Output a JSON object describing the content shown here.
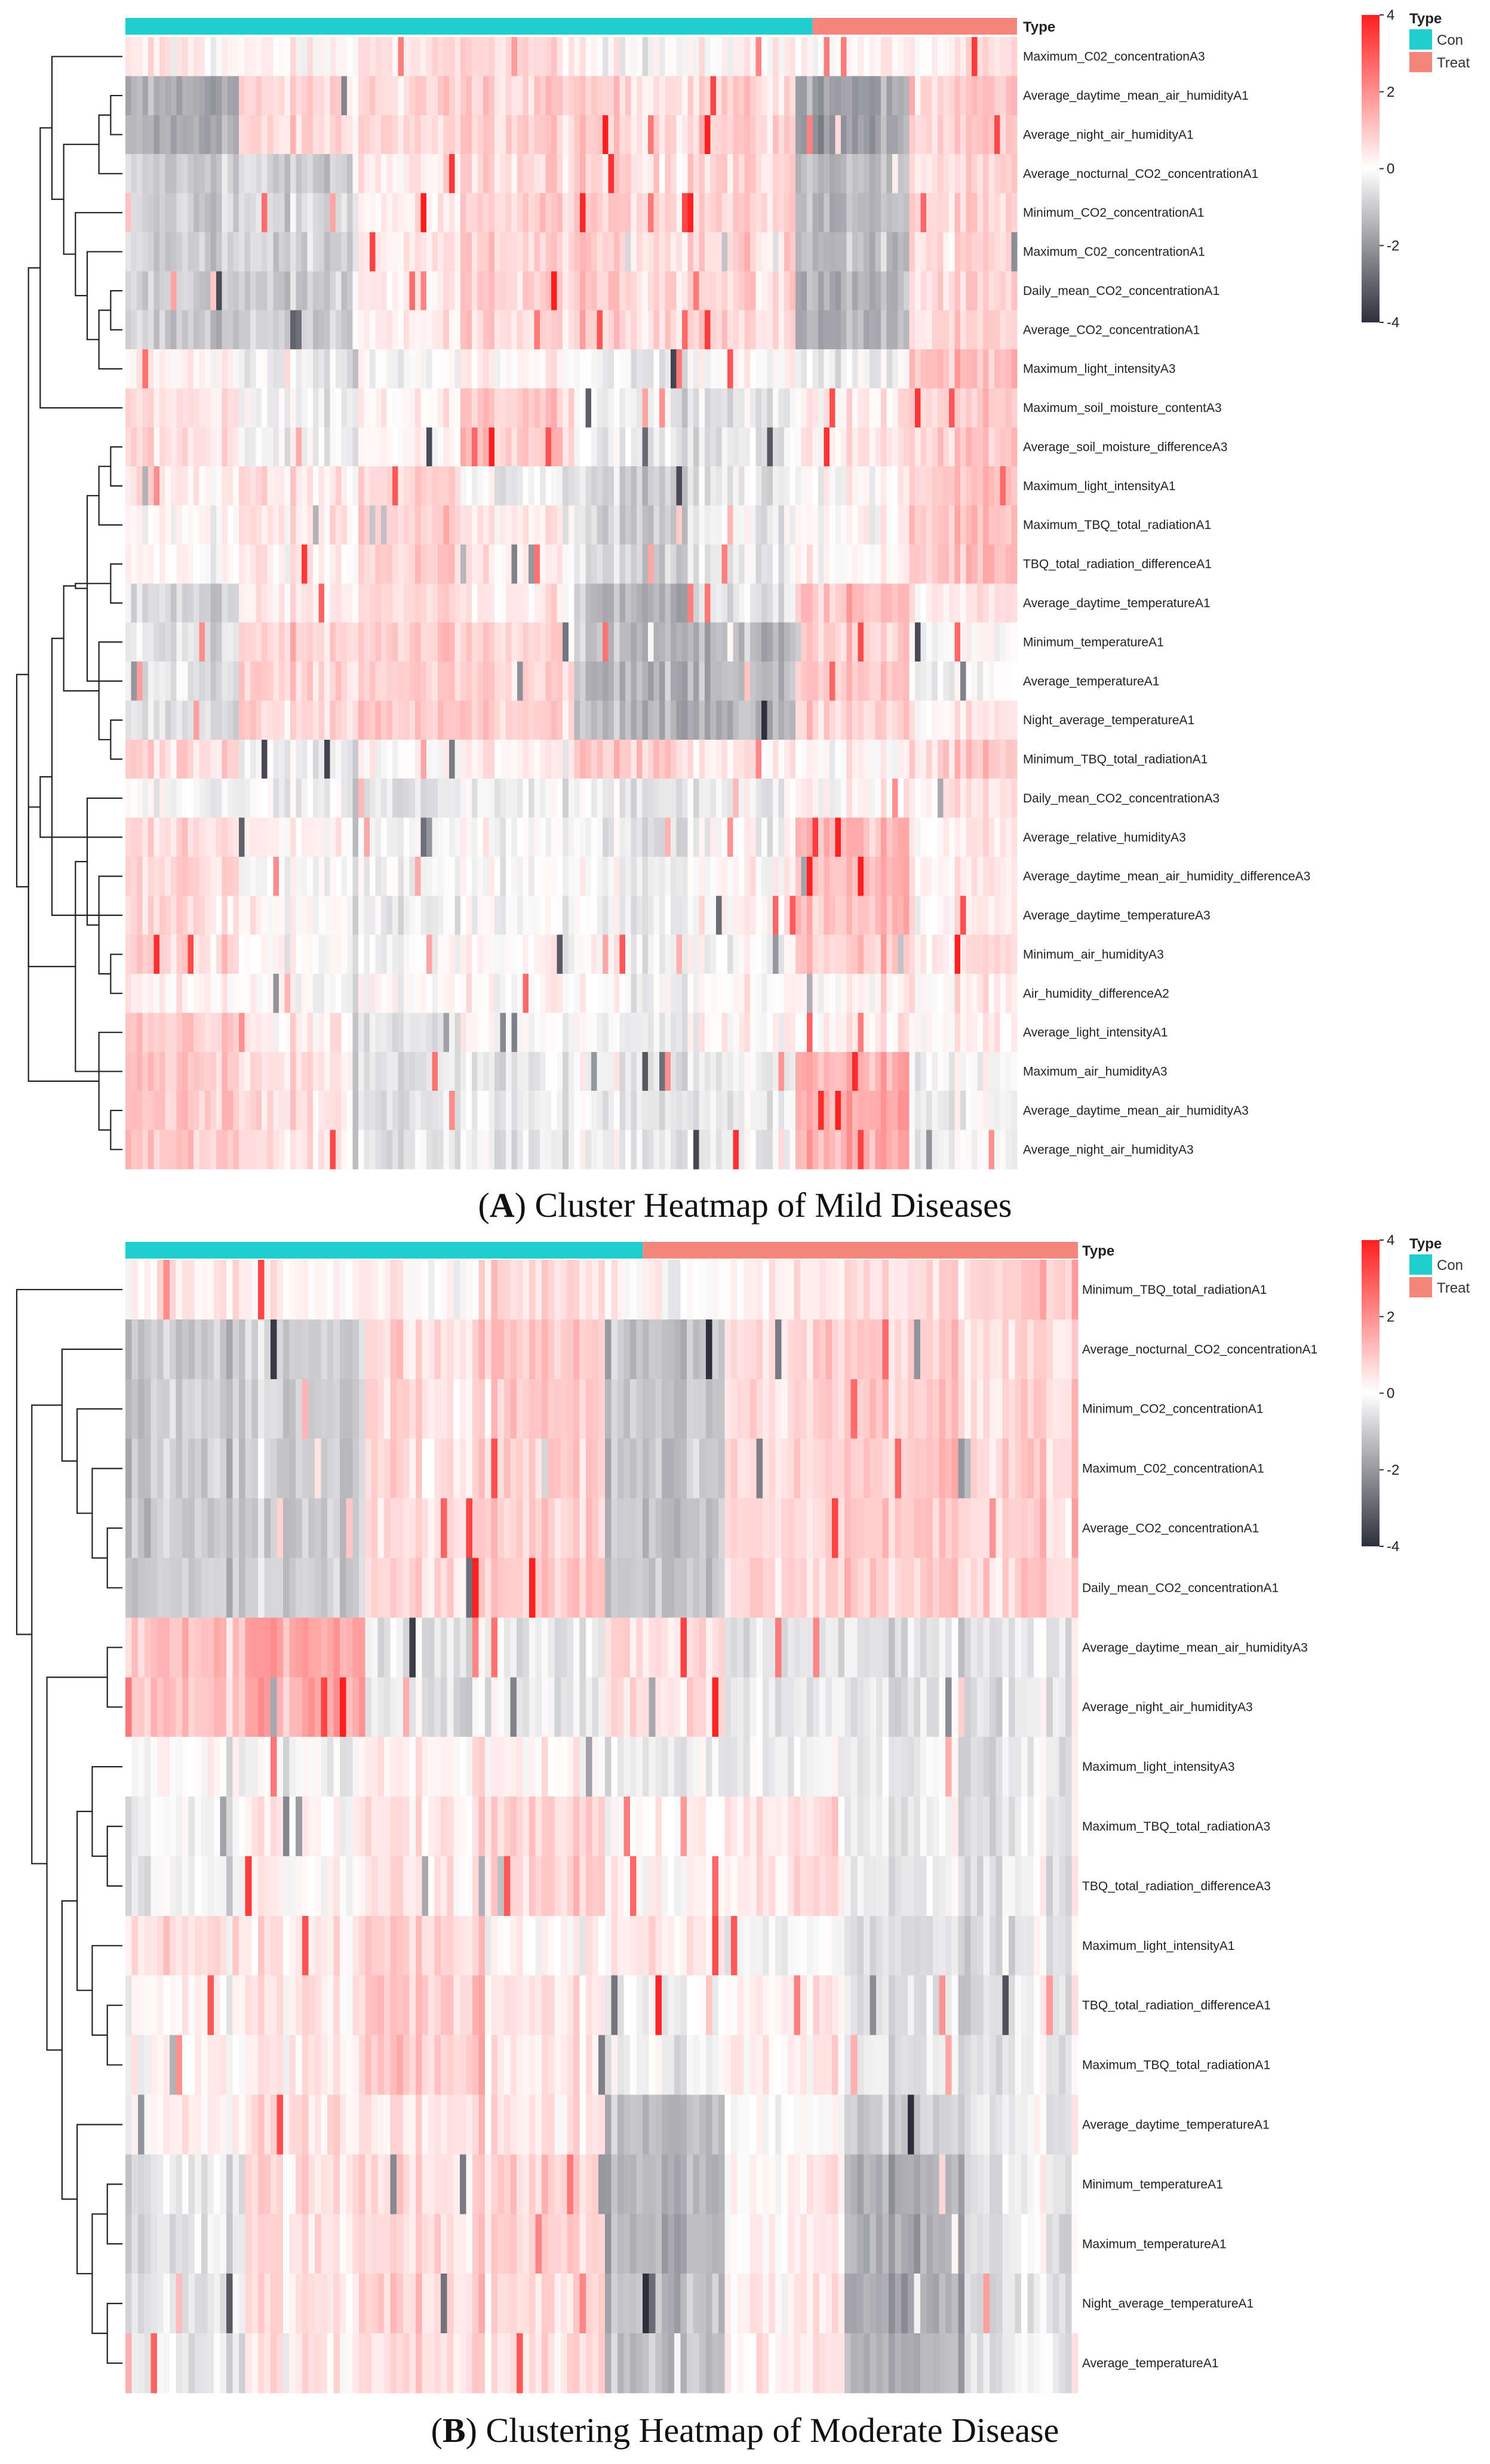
{
  "chart_data": [
    {
      "type": "heatmap",
      "panel_label": "A",
      "caption": "Cluster Heatmap of Mild Diseases",
      "annotation_title": "Type",
      "legend": {
        "title": "Type",
        "groups": [
          {
            "name": "Con",
            "color": "#1fcfcf"
          },
          {
            "name": "Treat",
            "color": "#f4867c"
          }
        ],
        "scale_ticks": [
          4,
          2,
          0,
          -2,
          -4
        ],
        "color_low": "#2f2f3d",
        "color_mid": "#ffffff",
        "color_high": "#ff1f1f",
        "value_range": [
          -4,
          4
        ]
      },
      "group_counts": {
        "Con": 121,
        "Treat": 36
      },
      "rows": [
        "Maximum_C02_concentrationA3",
        "Average_daytime_mean_air_humidityA1",
        "Average_night_air_humidityA1",
        "Average_nocturnal_CO2_concentrationA1",
        "Minimum_CO2_concentrationA1",
        "Maximum_C02_concentrationA1",
        "Daily_mean_CO2_concentrationA1",
        "Average_CO2_concentrationA1",
        "Maximum_light_intensityA3",
        "Maximum_soil_moisture_contentA3",
        "Average_soil_moisture_differenceA3",
        "Maximum_light_intensityA1",
        "Maximum_TBQ_total_radiationA1",
        "TBQ_total_radiation_differenceA1",
        "Average_daytime_temperatureA1",
        "Minimum_temperatureA1",
        "Average_temperatureA1",
        "Night_average_temperatureA1",
        "Minimum_TBQ_total_radiationA1",
        "Daily_mean_CO2_concentrationA3",
        "Average_relative_humidityA3",
        "Average_daytime_mean_air_humidity_differenceA3",
        "Average_daytime_temperatureA3",
        "Minimum_air_humidityA3",
        "Air_humidity_differenceA2",
        "Average_light_intensityA1",
        "Maximum_air_humidityA3",
        "Average_daytime_mean_air_humidityA3",
        "Average_night_air_humidityA3"
      ],
      "row_profiles": [
        [
          0.3,
          0.2,
          0.5,
          0.6,
          0.0,
          0.1,
          0.2,
          0.3
        ],
        [
          -1.6,
          0.7,
          0.7,
          0.8,
          0.7,
          0.7,
          -1.8,
          0.8
        ],
        [
          -1.6,
          0.6,
          0.6,
          0.8,
          0.7,
          0.7,
          -1.8,
          0.8
        ],
        [
          -0.9,
          -0.9,
          0.3,
          0.7,
          0.7,
          0.7,
          -1.3,
          0.6
        ],
        [
          -0.9,
          -0.8,
          0.3,
          0.8,
          0.9,
          0.8,
          -1.3,
          0.6
        ],
        [
          -0.9,
          -0.9,
          0.3,
          0.8,
          0.8,
          0.7,
          -1.3,
          0.6
        ],
        [
          -1.0,
          -1.0,
          0.3,
          0.8,
          0.8,
          0.7,
          -1.4,
          0.6
        ],
        [
          -1.0,
          -1.0,
          0.3,
          0.8,
          0.8,
          0.7,
          -1.4,
          0.6
        ],
        [
          0.2,
          -0.4,
          -0.2,
          0.2,
          -0.4,
          0.0,
          -0.3,
          1.0
        ],
        [
          0.6,
          -0.3,
          0.1,
          0.9,
          -0.3,
          -0.5,
          0.4,
          0.8
        ],
        [
          0.6,
          -0.3,
          0.1,
          0.9,
          -0.3,
          -0.5,
          0.4,
          0.8
        ],
        [
          0.4,
          0.4,
          0.7,
          -0.3,
          -0.9,
          -0.4,
          0.1,
          0.9
        ],
        [
          0.1,
          0.3,
          0.8,
          0.3,
          -0.8,
          -0.4,
          0.1,
          1.0
        ],
        [
          0.1,
          0.3,
          0.8,
          0.3,
          -0.8,
          -0.4,
          0.1,
          1.0
        ],
        [
          -0.8,
          0.3,
          0.6,
          0.4,
          -1.4,
          -0.6,
          1.2,
          0.3
        ],
        [
          -0.6,
          0.7,
          0.9,
          0.7,
          -1.3,
          -1.5,
          0.9,
          -0.2
        ],
        [
          -0.5,
          0.7,
          0.9,
          0.8,
          -1.4,
          -1.4,
          1.0,
          -0.3
        ],
        [
          -0.6,
          0.7,
          0.9,
          0.9,
          -1.3,
          -1.5,
          0.8,
          0.2
        ],
        [
          0.7,
          -0.3,
          -0.1,
          0.3,
          1.0,
          0.3,
          0.1,
          0.8
        ],
        [
          -0.1,
          -0.3,
          -0.6,
          -0.2,
          -0.4,
          -0.3,
          0.2,
          0.4
        ],
        [
          0.6,
          0.2,
          -0.3,
          -0.1,
          -0.3,
          -0.1,
          1.3,
          0.3
        ],
        [
          0.7,
          -0.2,
          -0.2,
          -0.1,
          -0.2,
          0.0,
          1.3,
          0.2
        ],
        [
          0.6,
          0.1,
          -0.4,
          -0.2,
          -0.3,
          0.1,
          1.2,
          0.2
        ],
        [
          0.8,
          0.0,
          -0.2,
          0.1,
          -0.2,
          -0.1,
          1.0,
          0.4
        ],
        [
          0.2,
          -0.1,
          0.0,
          0.1,
          -0.1,
          0.0,
          0.3,
          0.2
        ],
        [
          0.9,
          0.3,
          -0.6,
          -0.1,
          -0.3,
          0.2,
          0.3,
          0.1
        ],
        [
          1.0,
          0.5,
          -0.6,
          -0.4,
          -0.3,
          -0.4,
          1.4,
          -0.3
        ],
        [
          1.0,
          0.5,
          -0.6,
          -0.4,
          -0.3,
          -0.4,
          1.5,
          -0.3
        ],
        [
          1.0,
          0.4,
          -0.6,
          -0.4,
          -0.3,
          -0.4,
          1.4,
          -0.3
        ]
      ],
      "row_dendrogram": [
        [
          1,
          2
        ],
        [
          29,
          3
        ],
        [
          6,
          7
        ],
        [
          31,
          8
        ],
        [
          5,
          32
        ],
        [
          4,
          33
        ],
        [
          30,
          34
        ],
        [
          0,
          35
        ],
        [
          10,
          11
        ],
        [
          13,
          14
        ],
        [
          12,
          37
        ],
        [
          17,
          18
        ],
        [
          16,
          39
        ],
        [
          15,
          40
        ],
        [
          38,
          41
        ],
        [
          9,
          36
        ],
        [
          42,
          43
        ],
        [
          23,
          24
        ],
        [
          22,
          45
        ],
        [
          21,
          46
        ],
        [
          20,
          47
        ],
        [
          19,
          48
        ],
        [
          28,
          27
        ],
        [
          26,
          50
        ],
        [
          25,
          51
        ],
        [
          49,
          52
        ],
        [
          44,
          53
        ],
        [
          54,
          55
        ]
      ]
    },
    {
      "type": "heatmap",
      "panel_label": "B",
      "caption": "Clustering Heatmap of Moderate Disease",
      "annotation_title": "Type",
      "legend": {
        "title": "Type",
        "groups": [
          {
            "name": "Con",
            "color": "#1fcfcf"
          },
          {
            "name": "Treat",
            "color": "#f4867c"
          }
        ],
        "scale_ticks": [
          4,
          2,
          0,
          -2,
          -4
        ],
        "color_low": "#2f2f3d",
        "color_mid": "#ffffff",
        "color_high": "#ff1f1f",
        "value_range": [
          -4,
          4
        ]
      },
      "group_counts": {
        "Con": 82,
        "Treat": 69
      },
      "rows": [
        "Minimum_TBQ_total_radiationA1",
        "Average_nocturnal_CO2_concentrationA1",
        "Minimum_CO2_concentrationA1",
        "Maximum_C02_concentrationA1",
        "Average_CO2_concentrationA1",
        "Daily_mean_CO2_concentrationA1",
        "Average_daytime_mean_air_humidityA3",
        "Average_night_air_humidityA3",
        "Maximum_light_intensityA3",
        "Maximum_TBQ_total_radiationA3",
        "TBQ_total_radiation_differenceA3",
        "Maximum_light_intensityA1",
        "TBQ_total_radiation_differenceA1",
        "Maximum_TBQ_total_radiationA1",
        "Average_daytime_temperatureA1",
        "Minimum_temperatureA1",
        "Maximum_temperatureA1",
        "Night_average_temperatureA1",
        "Average_temperatureA1"
      ],
      "row_profiles": [
        [
          0.3,
          0.2,
          0.2,
          0.6,
          0.1,
          0.3,
          0.7,
          1.0
        ],
        [
          -1.0,
          -0.9,
          0.7,
          0.9,
          -1.2,
          0.8,
          0.9,
          0.7
        ],
        [
          -1.0,
          -0.9,
          0.6,
          0.9,
          -1.0,
          0.7,
          1.0,
          0.8
        ],
        [
          -1.0,
          -0.9,
          0.6,
          0.9,
          -1.1,
          0.7,
          1.0,
          0.8
        ],
        [
          -1.0,
          -0.9,
          0.6,
          0.9,
          -1.1,
          0.7,
          1.0,
          0.8
        ],
        [
          -1.0,
          -0.9,
          0.6,
          0.9,
          -1.1,
          0.7,
          1.0,
          0.8
        ],
        [
          1.0,
          1.6,
          -0.5,
          -0.4,
          0.6,
          -0.4,
          -0.5,
          -0.4
        ],
        [
          1.0,
          1.5,
          -0.5,
          -0.4,
          0.6,
          -0.4,
          -0.5,
          -0.4
        ],
        [
          0.0,
          -0.2,
          0.3,
          0.1,
          -0.3,
          -0.2,
          -0.3,
          -0.4
        ],
        [
          -0.3,
          0.2,
          0.4,
          0.8,
          0.1,
          0.5,
          -0.3,
          -0.4
        ],
        [
          -0.3,
          0.2,
          0.4,
          0.8,
          0.1,
          0.5,
          -0.3,
          -0.4
        ],
        [
          0.6,
          0.4,
          0.8,
          0.1,
          0.4,
          -0.2,
          -0.5,
          -0.5
        ],
        [
          0.1,
          0.4,
          1.0,
          0.4,
          -0.2,
          0.3,
          -0.5,
          -0.4
        ],
        [
          0.1,
          0.4,
          1.0,
          0.4,
          -0.2,
          0.3,
          -0.5,
          -0.4
        ],
        [
          0.2,
          0.6,
          0.5,
          0.4,
          -1.2,
          0.0,
          -0.9,
          -0.3
        ],
        [
          -0.5,
          0.6,
          0.7,
          0.7,
          -1.4,
          0.3,
          -1.5,
          -0.4
        ],
        [
          -0.5,
          0.6,
          0.7,
          0.7,
          -1.4,
          0.3,
          -1.5,
          -0.4
        ],
        [
          -0.5,
          0.6,
          0.7,
          0.6,
          -1.3,
          0.4,
          -1.5,
          -0.5
        ],
        [
          -0.4,
          0.5,
          0.6,
          0.5,
          -1.2,
          0.4,
          -1.4,
          -0.4
        ]
      ],
      "row_dendrogram": [
        [
          4,
          5
        ],
        [
          3,
          19
        ],
        [
          2,
          20
        ],
        [
          1,
          21
        ],
        [
          6,
          7
        ],
        [
          9,
          10
        ],
        [
          8,
          24
        ],
        [
          12,
          13
        ],
        [
          11,
          26
        ],
        [
          25,
          27
        ],
        [
          15,
          16
        ],
        [
          17,
          18
        ],
        [
          29,
          30
        ],
        [
          14,
          31
        ],
        [
          28,
          32
        ],
        [
          23,
          33
        ],
        [
          22,
          34
        ],
        [
          0,
          35
        ]
      ]
    }
  ]
}
